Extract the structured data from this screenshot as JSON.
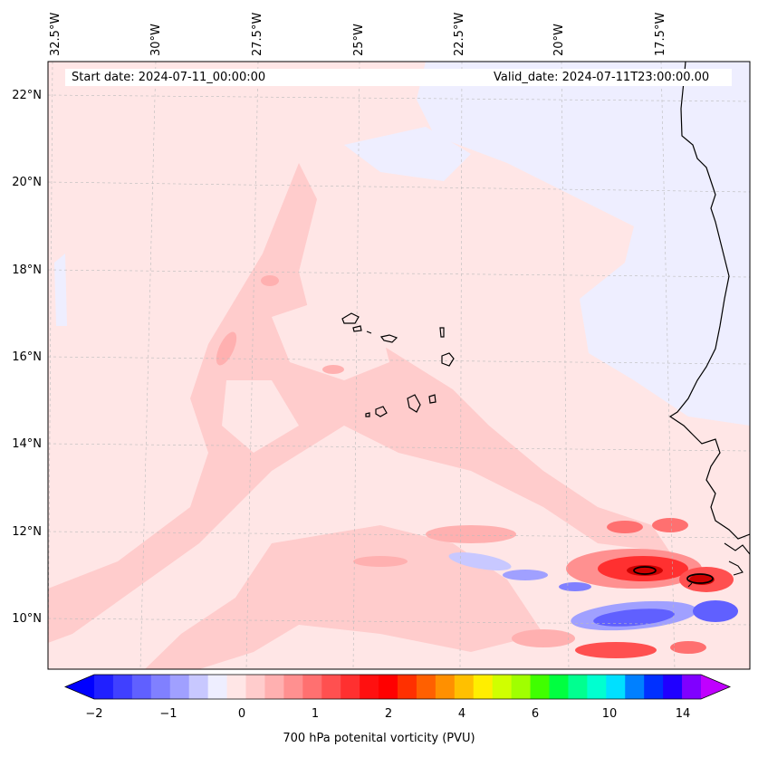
{
  "header": {
    "start_date": "Start date: 2024-07-11_00:00:00",
    "valid_date": "Valid_date: 2024-07-11T23:00:00.00"
  },
  "map": {
    "lon_labels": [
      "32.5°W",
      "30°W",
      "27.5°W",
      "25°W",
      "22.5°W",
      "20°W",
      "17.5°W"
    ],
    "lat_labels": [
      "22°N",
      "20°N",
      "18°N",
      "16°N",
      "14°N",
      "12°N",
      "10°N"
    ],
    "colors": {
      "background_low": "#ffe6e6",
      "medium_pink": "#ffcccc",
      "red_high": "#ff2020",
      "blue_negative": "#8080ff",
      "pale_blue": "#eeeeff",
      "coastline": "#000000"
    }
  },
  "colorbar": {
    "title": "700 hPa potenital vorticity (PVU)",
    "ticks": [
      "−2",
      "−1",
      "0",
      "1",
      "2",
      "4",
      "6",
      "10",
      "14"
    ],
    "colors": [
      "#0000ff",
      "#2020ff",
      "#4040ff",
      "#6060ff",
      "#8080ff",
      "#a0a0ff",
      "#c8c8ff",
      "#eeeeff",
      "#ffe6e6",
      "#ffcccc",
      "#ffb0b0",
      "#ff9090",
      "#ff7070",
      "#ff5050",
      "#ff3030",
      "#ff1010",
      "#ff0000",
      "#ff3000",
      "#ff6000",
      "#ff9000",
      "#ffc000",
      "#ffee00",
      "#d0ff00",
      "#a0ff00",
      "#40ff00",
      "#00ff40",
      "#00ff90",
      "#00ffd0",
      "#00e0ff",
      "#0080ff",
      "#0030ff",
      "#2000ff",
      "#8000ff",
      "#c000ff"
    ]
  }
}
